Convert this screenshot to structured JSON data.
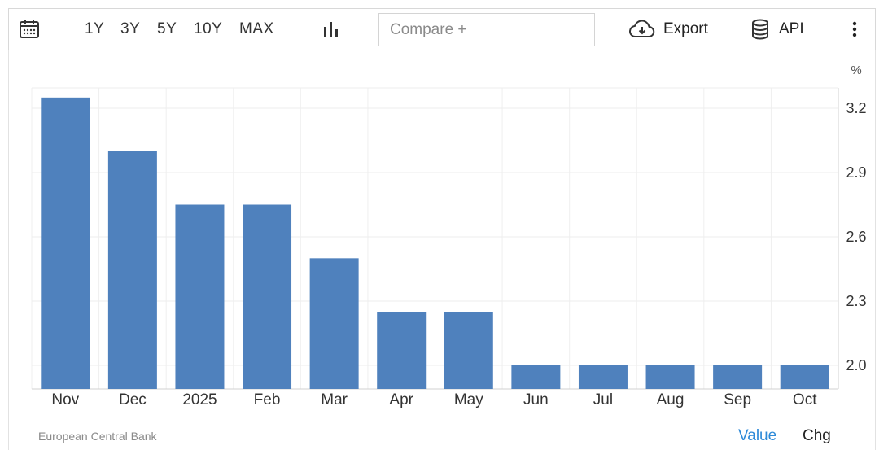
{
  "toolbar": {
    "ranges": [
      "1Y",
      "3Y",
      "5Y",
      "10Y",
      "MAX"
    ],
    "compare_placeholder": "Compare +",
    "export_label": "Export",
    "api_label": "API"
  },
  "chart_data": {
    "type": "bar",
    "unit_label": "%",
    "categories": [
      "Nov",
      "Dec",
      "2025",
      "Feb",
      "Mar",
      "Apr",
      "May",
      "Jun",
      "Jul",
      "Aug",
      "Sep",
      "Oct"
    ],
    "values": [
      3.25,
      3.0,
      2.75,
      2.75,
      2.5,
      2.25,
      2.25,
      2.0,
      2.0,
      2.0,
      2.0,
      2.0
    ],
    "yticks": [
      2.0,
      2.3,
      2.6,
      2.9,
      3.2
    ],
    "ylim": [
      1.9,
      3.3
    ],
    "yaxis_side": "right",
    "bar_color": "#4f81bd",
    "grid": true
  },
  "footer": {
    "source": "European Central Bank",
    "value_label": "Value",
    "chg_label": "Chg",
    "value_color": "#2e8ad8"
  }
}
